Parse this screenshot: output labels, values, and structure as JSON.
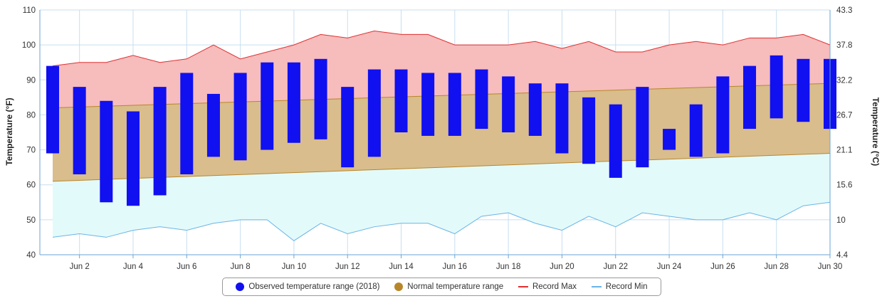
{
  "chart_data": {
    "type": "range-bar",
    "y_left": {
      "label": "Temperature (°F)",
      "min": 40,
      "max": 110,
      "ticks": [
        40,
        50,
        60,
        70,
        80,
        90,
        100,
        110
      ]
    },
    "y_right": {
      "label": "Temperature (°C)",
      "min": 4.4,
      "max": 43.3,
      "tick_labels": [
        "4.4",
        "10",
        "15.6",
        "21.1",
        "26.7",
        "32.2",
        "37.8",
        "43.3"
      ]
    },
    "x": {
      "days": [
        1,
        2,
        3,
        4,
        5,
        6,
        7,
        8,
        9,
        10,
        11,
        12,
        13,
        14,
        15,
        16,
        17,
        18,
        19,
        20,
        21,
        22,
        23,
        24,
        25,
        26,
        27,
        28,
        29,
        30
      ],
      "tick_labels": [
        "Jun 2",
        "Jun 4",
        "Jun 6",
        "Jun 8",
        "Jun 10",
        "Jun 12",
        "Jun 14",
        "Jun 16",
        "Jun 18",
        "Jun 20",
        "Jun 22",
        "Jun 24",
        "Jun 26",
        "Jun 28",
        "Jun 30"
      ]
    },
    "observed": {
      "name": "Observed temperature range (2018)",
      "color": "#1010f0",
      "low": [
        69,
        63,
        55,
        54,
        57,
        63,
        68,
        67,
        70,
        72,
        73,
        65,
        68,
        75,
        74,
        74,
        76,
        75,
        74,
        69,
        66,
        62,
        65,
        70,
        68,
        69,
        76,
        79,
        78,
        76
      ],
      "high": [
        94,
        88,
        84,
        81,
        88,
        92,
        86,
        92,
        95,
        95,
        96,
        88,
        93,
        93,
        92,
        92,
        93,
        91,
        89,
        89,
        85,
        83,
        88,
        76,
        83,
        91,
        94,
        97,
        96,
        96
      ]
    },
    "normal": {
      "name": "Normal temperature range",
      "color": "#b8862a",
      "low_start": 61,
      "low_end": 69,
      "high_start": 82,
      "high_end": 89
    },
    "record_max": {
      "name": "Record Max",
      "color": "#e03030",
      "values": [
        94,
        95,
        95,
        97,
        95,
        96,
        100,
        96,
        98,
        100,
        103,
        102,
        104,
        103,
        103,
        100,
        100,
        100,
        101,
        99,
        101,
        98,
        98,
        100,
        101,
        100,
        102,
        102,
        103,
        100
      ]
    },
    "record_min": {
      "name": "Record Min",
      "color": "#6ab4e8",
      "values": [
        45,
        46,
        45,
        47,
        48,
        47,
        49,
        50,
        50,
        44,
        49,
        46,
        48,
        49,
        49,
        46,
        51,
        52,
        49,
        47,
        51,
        48,
        52,
        51,
        50,
        50,
        52,
        50,
        54,
        55
      ]
    },
    "legend_position": "bottom-center",
    "grid": true
  }
}
